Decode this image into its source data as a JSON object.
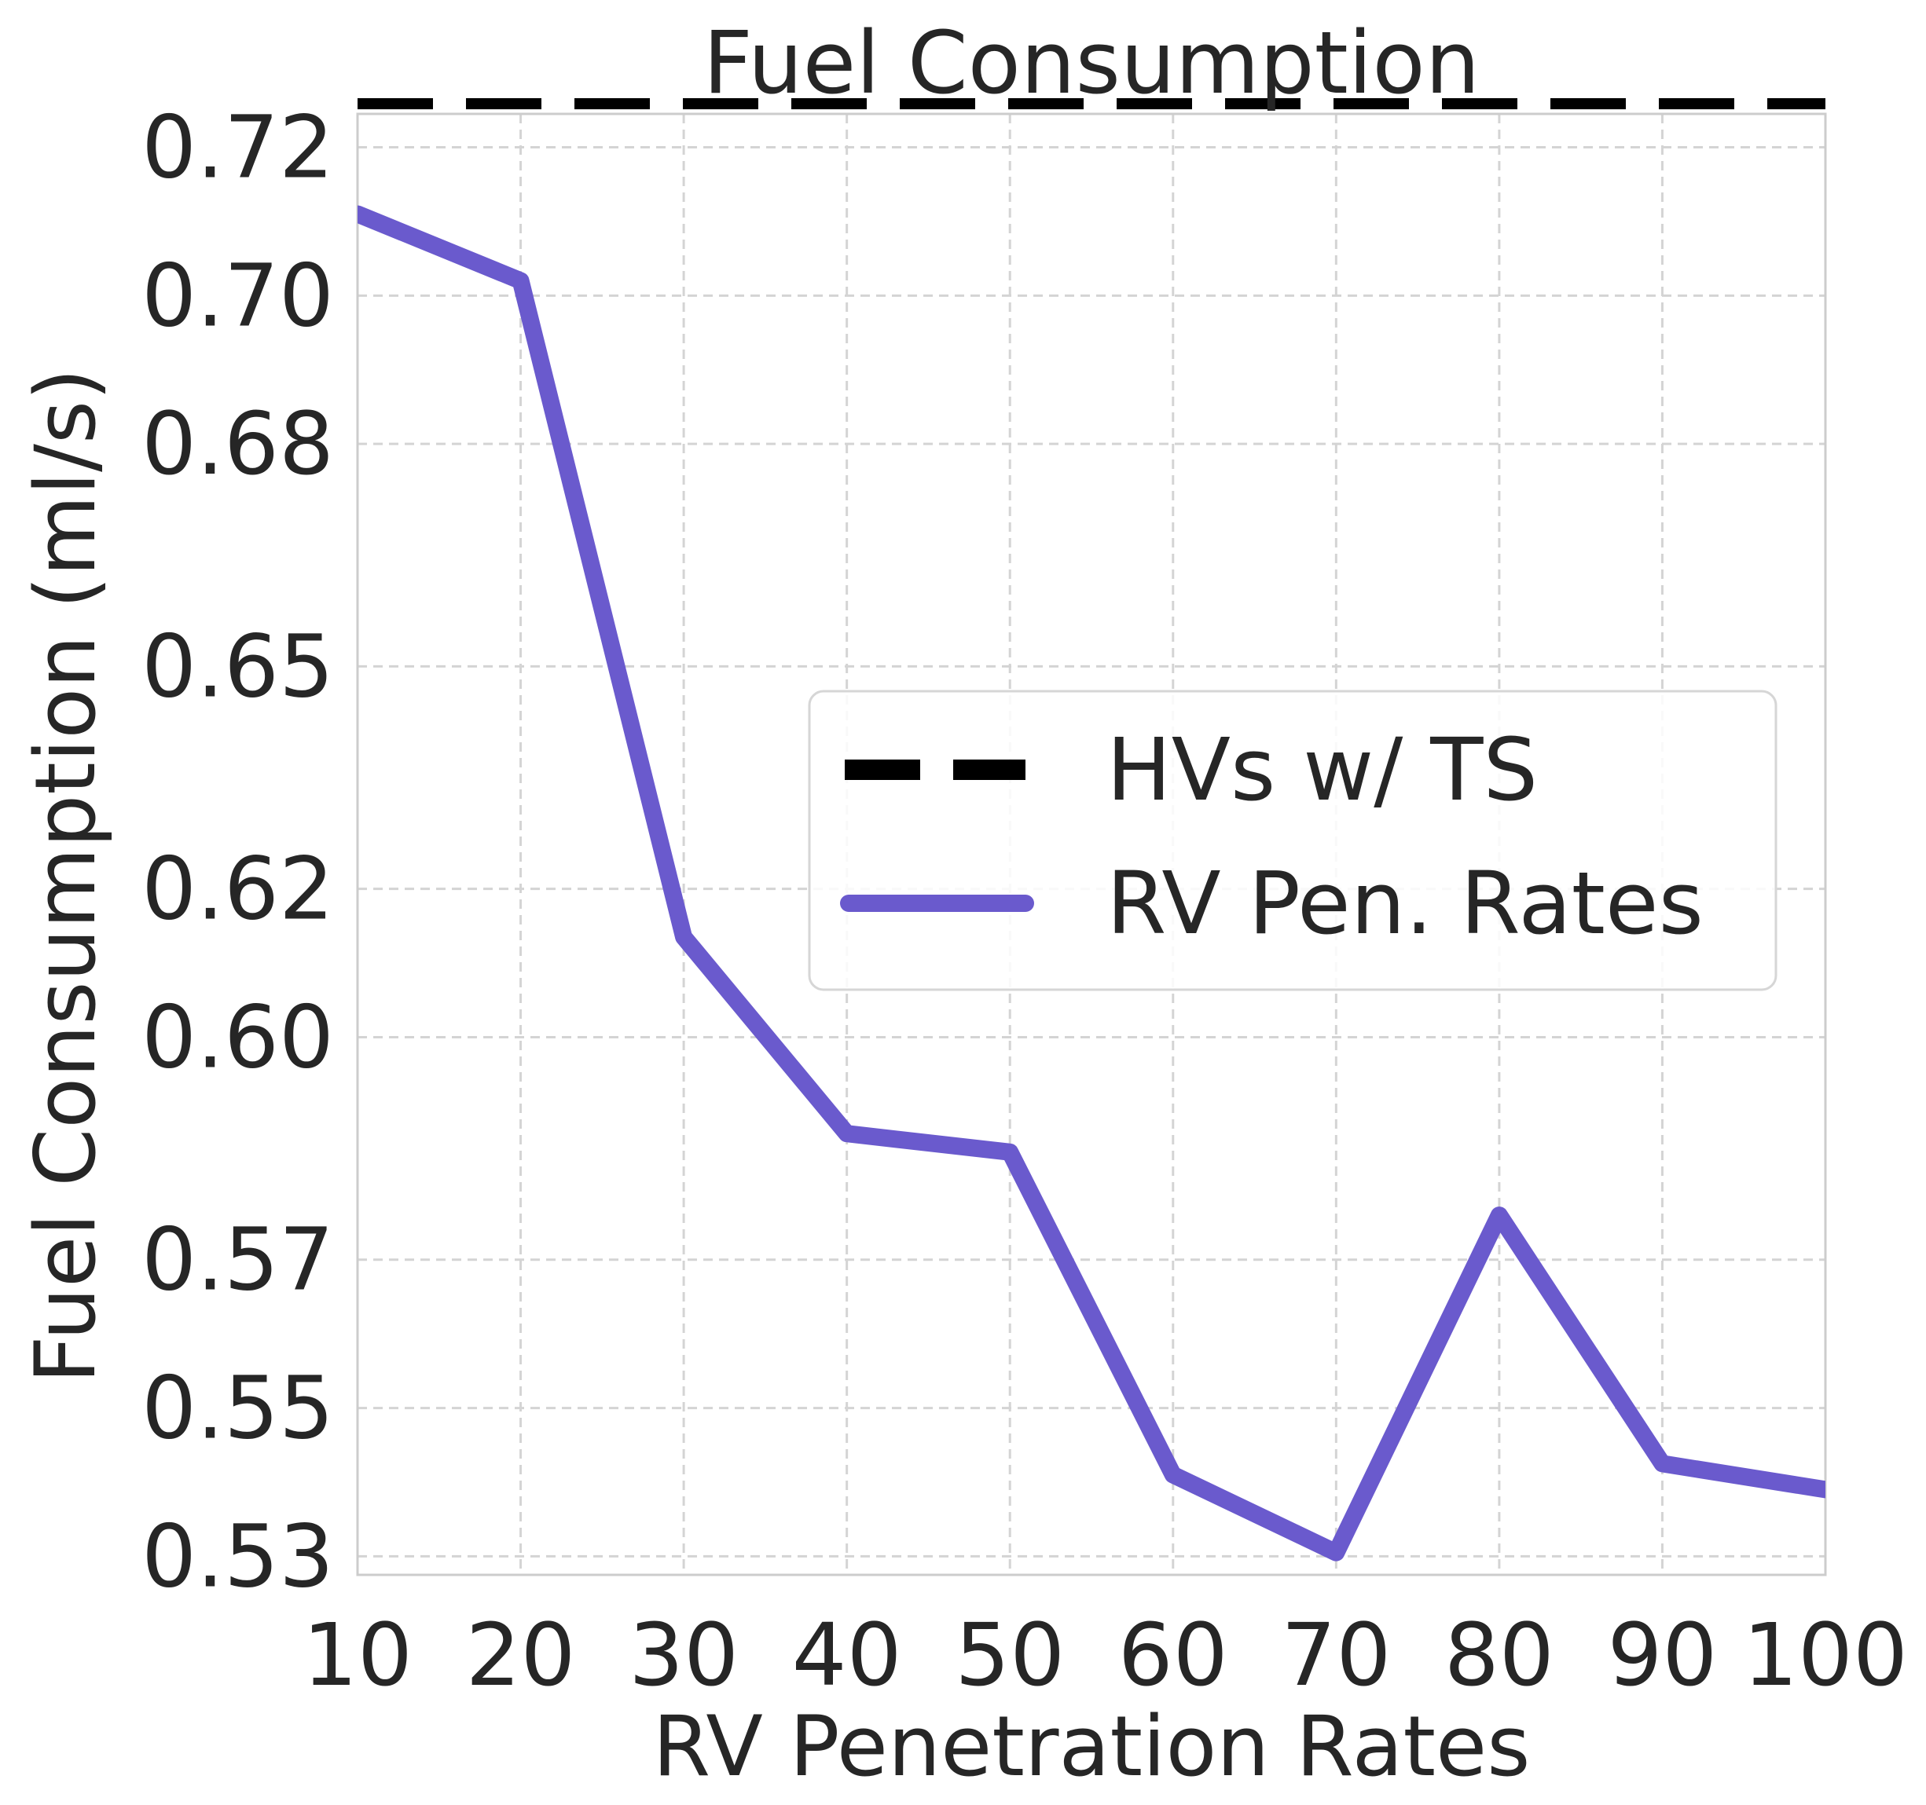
{
  "chart_data": {
    "type": "line",
    "title": "Fuel Consumption",
    "xlabel": "RV Penetration Rates",
    "ylabel": "Fuel Consumption (ml/s)",
    "x": [
      10,
      20,
      30,
      40,
      50,
      60,
      70,
      80,
      90,
      100
    ],
    "xlim": [
      10,
      100
    ],
    "ylim": [
      0.5275,
      0.7245
    ],
    "x_ticks": [
      10,
      20,
      30,
      40,
      50,
      60,
      70,
      80,
      90,
      100
    ],
    "y_ticks": [
      0.53,
      0.55,
      0.57,
      0.6,
      0.62,
      0.65,
      0.68,
      0.7,
      0.72
    ],
    "y_tick_labels": [
      "0.53",
      "0.55",
      "0.57",
      "0.60",
      "0.62",
      "0.65",
      "0.68",
      "0.70",
      "0.72"
    ],
    "y_tick_values": [
      0.53,
      0.55,
      0.57,
      0.6,
      0.62,
      0.65,
      0.68,
      0.7,
      0.72
    ],
    "grid": true,
    "legend_position": "center-right",
    "series": [
      {
        "name": "HVs w/ TS",
        "style": "dashed",
        "color": "#000000",
        "values": [
          0.7265,
          0.7265,
          0.7265,
          0.7265,
          0.7265,
          0.7265,
          0.7265,
          0.7265,
          0.7265,
          0.7265
        ]
      },
      {
        "name": "RV Pen. Rates",
        "style": "solid",
        "color": "#6a5acd",
        "values": [
          0.711,
          0.702,
          0.6135,
          0.587,
          0.5845,
          0.541,
          0.5305,
          0.576,
          0.5425,
          0.539
        ]
      }
    ]
  }
}
